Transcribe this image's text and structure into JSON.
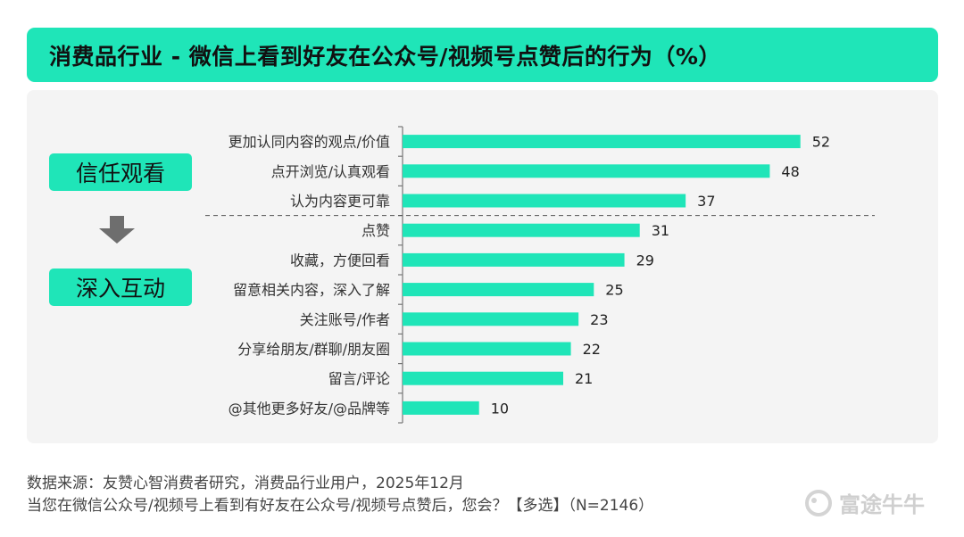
{
  "title": "消费品行业 - 微信上看到好友在公众号/视频号点赞后的行为（%）",
  "tags": {
    "trust": "信任观看",
    "interact": "深入互动"
  },
  "icons": {
    "arrow": "arrow-down-icon",
    "logo": "futu-logo-icon"
  },
  "colors": {
    "accent": "#1fe5b8",
    "bar": "#1fe5b8"
  },
  "chart_data": {
    "type": "bar",
    "orientation": "horizontal",
    "categories": [
      "更加认同内容的观点/价值",
      "点开浏览/认真观看",
      "认为内容更可靠",
      "点赞",
      "收藏，方便回看",
      "留意相关内容，深入了解",
      "关注账号/作者",
      "分享给朋友/群聊/朋友圈",
      "留言/评论",
      "@其他更多好友/@品牌等"
    ],
    "values": [
      52,
      48,
      37,
      31,
      29,
      25,
      23,
      22,
      21,
      10
    ],
    "xlim": [
      0,
      56
    ],
    "grid": false,
    "legend": "none",
    "divider_after_index": 2
  },
  "footer": {
    "source": "数据来源：友赞心智消费者研究，消费品行业用户，2025年12月",
    "question": "当您在微信公众号/视频号上看到有好友在公众号/视频号点赞后，您会？【多选】（N=2146）"
  },
  "watermark": "富途牛牛"
}
